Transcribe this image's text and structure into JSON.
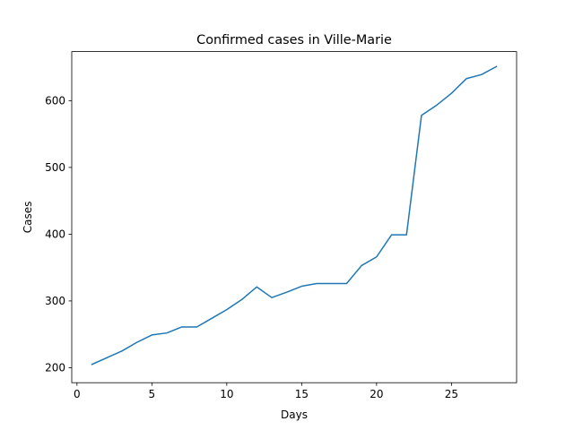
{
  "chart_data": {
    "type": "line",
    "title": "Confirmed cases in Ville-Marie",
    "xlabel": "Days",
    "ylabel": "Cases",
    "xlim": [
      -0.35,
      29.35
    ],
    "ylim": [
      177.5,
      673.5
    ],
    "xticks": [
      0,
      5,
      10,
      15,
      20,
      25
    ],
    "yticks": [
      200,
      300,
      400,
      500,
      600
    ],
    "grid": false,
    "line_color": "#1f77b4",
    "series": [
      {
        "x": [
          1,
          2,
          3,
          4,
          5,
          6,
          7,
          8,
          9,
          10,
          11,
          12,
          13,
          14,
          15,
          16,
          17,
          18,
          19,
          20,
          21,
          22,
          23,
          24,
          25,
          26,
          27,
          28
        ],
        "values": [
          205,
          215,
          225,
          238,
          249,
          252,
          261,
          261,
          274,
          287,
          302,
          321,
          305,
          313,
          322,
          326,
          326,
          326,
          353,
          366,
          399,
          399,
          578,
          593,
          611,
          633,
          639,
          651
        ]
      }
    ]
  }
}
